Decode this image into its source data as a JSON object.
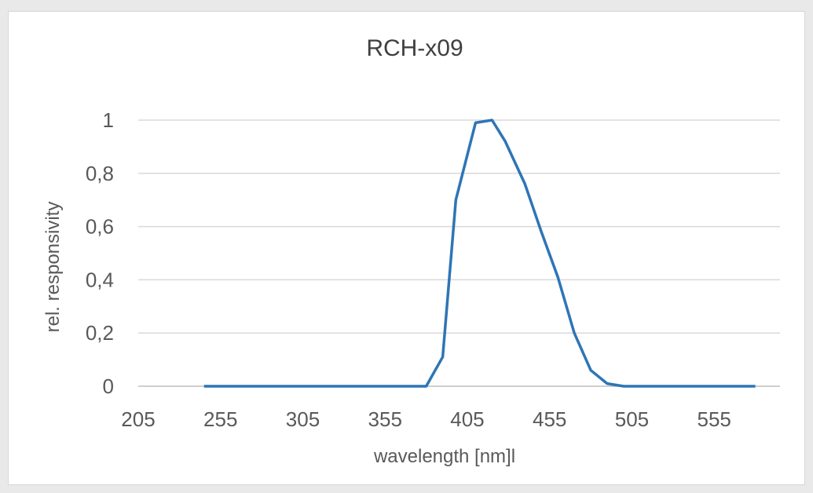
{
  "chart_data": {
    "type": "line",
    "title": "RCH-x09",
    "xlabel": "wavelength [nm]l",
    "ylabel": "rel. responsivity",
    "xlim": [
      205,
      595
    ],
    "ylim": [
      0,
      1
    ],
    "x_ticks": [
      205,
      255,
      305,
      355,
      405,
      455,
      505,
      555
    ],
    "y_ticks": [
      {
        "value": 0,
        "label": "0"
      },
      {
        "value": 0.2,
        "label": "0,2"
      },
      {
        "value": 0.4,
        "label": "0,4"
      },
      {
        "value": 0.6,
        "label": "0,6"
      },
      {
        "value": 0.8,
        "label": "0,8"
      },
      {
        "value": 1,
        "label": "1"
      }
    ],
    "grid": "horizontal",
    "series": [
      {
        "color": "#2e75b6",
        "x": [
          245,
          255,
          305,
          355,
          380,
          390,
          398,
          410,
          420,
          428,
          440,
          450,
          460,
          470,
          480,
          490,
          500,
          505,
          555,
          580
        ],
        "y": [
          0,
          0,
          0,
          0,
          0,
          0.11,
          0.7,
          0.99,
          1.0,
          0.92,
          0.76,
          0.58,
          0.41,
          0.2,
          0.06,
          0.01,
          0,
          0,
          0,
          0
        ]
      }
    ]
  }
}
